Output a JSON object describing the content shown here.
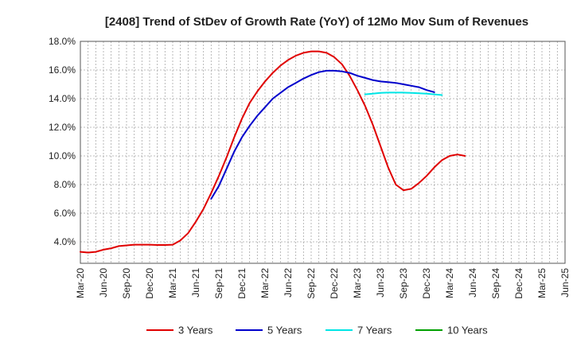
{
  "chart_data": {
    "type": "line",
    "title": "[2408]  Trend of StDev of Growth Rate (YoY) of 12Mo Mov Sum of Revenues",
    "xlabel": "",
    "ylabel": "",
    "ylim": [
      2.5,
      18.0
    ],
    "yticks": [
      {
        "value": 4,
        "label": "4.0%"
      },
      {
        "value": 6,
        "label": "6.0%"
      },
      {
        "value": 8,
        "label": "8.0%"
      },
      {
        "value": 10,
        "label": "10.0%"
      },
      {
        "value": 12,
        "label": "12.0%"
      },
      {
        "value": 14,
        "label": "14.0%"
      },
      {
        "value": 16,
        "label": "16.0%"
      },
      {
        "value": 18,
        "label": "18.0%"
      }
    ],
    "xticks": [
      "Mar-20",
      "Jun-20",
      "Sep-20",
      "Dec-20",
      "Mar-21",
      "Jun-21",
      "Sep-21",
      "Dec-21",
      "Mar-22",
      "Jun-22",
      "Sep-22",
      "Dec-22",
      "Mar-23",
      "Jun-23",
      "Sep-23",
      "Dec-23",
      "Mar-24",
      "Jun-24",
      "Sep-24",
      "Dec-24",
      "Mar-25",
      "Jun-25"
    ],
    "series": [
      {
        "name": "3 Years",
        "color": "#e00000",
        "points": [
          [
            0,
            3.3
          ],
          [
            1,
            3.25
          ],
          [
            2,
            3.3
          ],
          [
            3,
            3.45
          ],
          [
            4,
            3.55
          ],
          [
            5,
            3.7
          ],
          [
            6,
            3.75
          ],
          [
            7,
            3.8
          ],
          [
            8,
            3.8
          ],
          [
            9,
            3.8
          ],
          [
            10,
            3.78
          ],
          [
            11,
            3.78
          ],
          [
            12,
            3.8
          ],
          [
            13,
            4.1
          ],
          [
            14,
            4.6
          ],
          [
            15,
            5.4
          ],
          [
            16,
            6.3
          ],
          [
            17,
            7.4
          ],
          [
            18,
            8.6
          ],
          [
            19,
            9.9
          ],
          [
            20,
            11.3
          ],
          [
            21,
            12.6
          ],
          [
            22,
            13.7
          ],
          [
            23,
            14.5
          ],
          [
            24,
            15.2
          ],
          [
            25,
            15.8
          ],
          [
            26,
            16.3
          ],
          [
            27,
            16.7
          ],
          [
            28,
            17.0
          ],
          [
            29,
            17.2
          ],
          [
            30,
            17.3
          ],
          [
            31,
            17.3
          ],
          [
            32,
            17.2
          ],
          [
            33,
            16.9
          ],
          [
            34,
            16.4
          ],
          [
            35,
            15.6
          ],
          [
            36,
            14.6
          ],
          [
            37,
            13.5
          ],
          [
            38,
            12.2
          ],
          [
            39,
            10.7
          ],
          [
            40,
            9.2
          ],
          [
            41,
            8.0
          ],
          [
            42,
            7.6
          ],
          [
            43,
            7.7
          ],
          [
            44,
            8.1
          ],
          [
            45,
            8.6
          ],
          [
            46,
            9.2
          ],
          [
            47,
            9.7
          ],
          [
            48,
            10.0
          ],
          [
            49,
            10.1
          ],
          [
            50,
            10.0
          ]
        ]
      },
      {
        "name": "5 Years",
        "color": "#0000cc",
        "points": [
          [
            17,
            7.0
          ],
          [
            18,
            7.9
          ],
          [
            19,
            9.1
          ],
          [
            20,
            10.3
          ],
          [
            21,
            11.3
          ],
          [
            22,
            12.1
          ],
          [
            23,
            12.8
          ],
          [
            24,
            13.4
          ],
          [
            25,
            14.0
          ],
          [
            26,
            14.4
          ],
          [
            27,
            14.8
          ],
          [
            28,
            15.1
          ],
          [
            29,
            15.4
          ],
          [
            30,
            15.65
          ],
          [
            31,
            15.85
          ],
          [
            32,
            15.95
          ],
          [
            33,
            15.95
          ],
          [
            34,
            15.9
          ],
          [
            35,
            15.8
          ],
          [
            36,
            15.6
          ],
          [
            37,
            15.45
          ],
          [
            38,
            15.3
          ],
          [
            39,
            15.2
          ],
          [
            40,
            15.15
          ],
          [
            41,
            15.1
          ],
          [
            42,
            15.0
          ],
          [
            43,
            14.9
          ],
          [
            44,
            14.8
          ],
          [
            45,
            14.6
          ],
          [
            46,
            14.45
          ]
        ]
      },
      {
        "name": "7 Years",
        "color": "#00e5e5",
        "points": [
          [
            37,
            14.3
          ],
          [
            38,
            14.35
          ],
          [
            39,
            14.4
          ],
          [
            40,
            14.42
          ],
          [
            41,
            14.42
          ],
          [
            42,
            14.42
          ],
          [
            43,
            14.4
          ],
          [
            44,
            14.38
          ],
          [
            45,
            14.35
          ],
          [
            46,
            14.3
          ],
          [
            47,
            14.25
          ]
        ]
      },
      {
        "name": "10 Years",
        "color": "#00a000",
        "points": []
      }
    ]
  }
}
